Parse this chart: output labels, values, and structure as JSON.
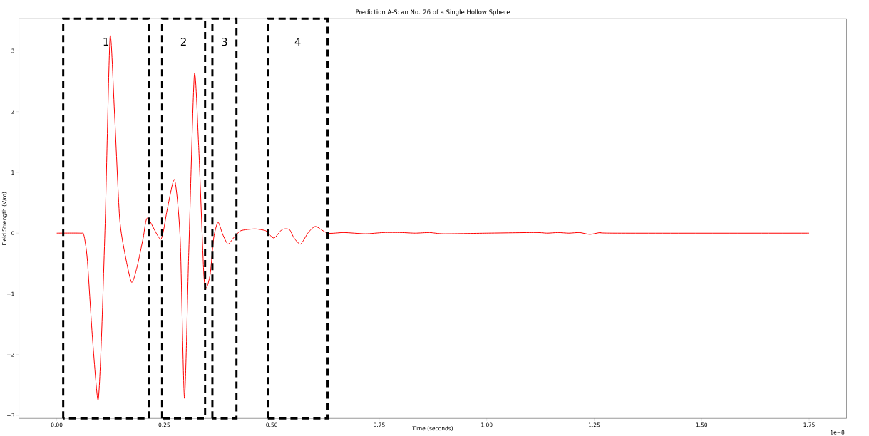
{
  "chart_data": {
    "type": "line",
    "title": "Prediction A-Scan No. 26 of a Single Hollow Sphere",
    "xlabel": "Time (seconds)",
    "ylabel": "Field Strength (V/m)",
    "annotations": [
      "1e−8"
    ],
    "xlim": [
      -0.088,
      1.837
    ],
    "ylim": [
      -3.05,
      3.53
    ],
    "xticks": [
      {
        "value": 0,
        "label": "0.00"
      },
      {
        "value": 0.25,
        "label": "0.25"
      },
      {
        "value": 0.5,
        "label": "0.50"
      },
      {
        "value": 0.75,
        "label": "0.75"
      },
      {
        "value": 1,
        "label": "1.00"
      },
      {
        "value": 1.25,
        "label": "1.25"
      },
      {
        "value": 1.5,
        "label": "1.50"
      },
      {
        "value": 1.75,
        "label": "1.75"
      }
    ],
    "yticks": [
      {
        "value": -3,
        "label": "−3"
      },
      {
        "value": -2,
        "label": "−2"
      },
      {
        "value": -1,
        "label": "−1"
      },
      0,
      1,
      2,
      3
    ],
    "grid": false,
    "marker": "none",
    "line_style": "solid",
    "bands": [
      {
        "axis": "x",
        "from": 0.015,
        "to": 0.214,
        "label": "1",
        "color": "#ffffff"
      },
      {
        "axis": "x",
        "from": 0.245,
        "to": 0.345,
        "label": "2",
        "color": "#ffffff"
      },
      {
        "axis": "x",
        "from": 0.362,
        "to": 0.418,
        "label": "3",
        "color": "#ffffff"
      },
      {
        "axis": "x",
        "from": 0.491,
        "to": 0.63,
        "label": "4",
        "color": "#ffffff"
      }
    ],
    "series": [
      {
        "color": "#ff0000",
        "x": [
          0,
          0.055,
          0.063,
          0.071,
          0.083,
          0.096,
          0.104,
          0.113,
          0.124,
          0.134,
          0.146,
          0.158,
          0.174,
          0.187,
          0.201,
          0.211,
          0.242,
          0.257,
          0.274,
          0.287,
          0.297,
          0.307,
          0.32,
          0.33,
          0.342,
          0.348,
          0.357,
          0.365,
          0.375,
          0.386,
          0.398,
          0.411,
          0.428,
          0.461,
          0.486,
          0.494,
          0.506,
          0.524,
          0.541,
          0.552,
          0.567,
          0.585,
          0.602,
          0.63,
          0.668,
          0.718,
          0.76,
          0.801,
          0.834,
          0.867,
          0.9,
          1.0,
          1.113,
          1.141,
          1.166,
          1.191,
          1.216,
          1.24,
          1.265,
          1.299,
          1.75
        ],
        "values": [
          0,
          0,
          -0.03,
          -0.43,
          -1.72,
          -2.75,
          -1.72,
          0.27,
          3.23,
          2.03,
          0.27,
          -0.32,
          -0.81,
          -0.55,
          -0.08,
          0.25,
          -0.1,
          0.39,
          0.88,
          -0.08,
          -2.72,
          -0.32,
          2.61,
          1.44,
          -0.67,
          -0.9,
          -0.67,
          -0.08,
          0.18,
          -0.02,
          -0.18,
          -0.08,
          0.04,
          0.07,
          0.04,
          -0.02,
          -0.08,
          0.06,
          0.06,
          -0.08,
          -0.18,
          0.01,
          0.11,
          0,
          0.01,
          -0.01,
          0.01,
          0.01,
          0,
          0.01,
          -0.01,
          0,
          0.01,
          0,
          0.01,
          0,
          0.01,
          -0.02,
          0.01,
          0,
          0
        ]
      }
    ]
  }
}
